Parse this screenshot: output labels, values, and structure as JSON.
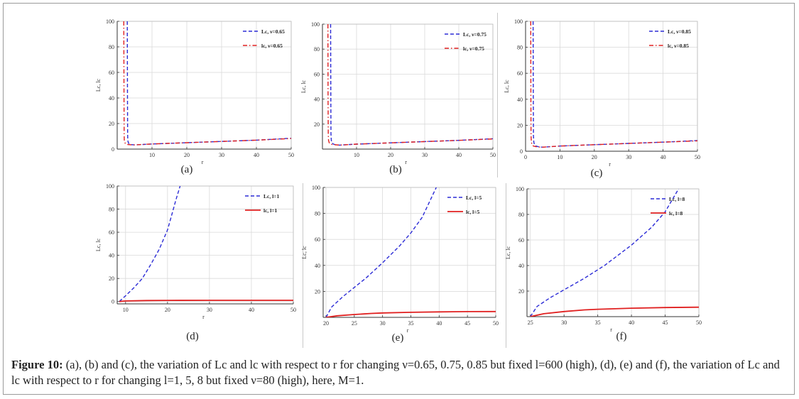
{
  "colors": {
    "blue": "#2b2bd6",
    "red": "#e02020",
    "grid": "#d9d9d9",
    "axis": "#333333"
  },
  "caption": {
    "label": "Figure 10:",
    "text": "(a), (b) and (c), the variation of Lc and lc with respect to r for changing ν=0.65, 0.75, 0.85 but fixed l=600 (high), (d), (e) and (f), the variation of Lc and lc with respect to r for changing l=1, 5, 8 but fixed ν=80 (high), here, M=1."
  },
  "chart_data": [
    {
      "id": "a",
      "panel_label": "(a)",
      "type": "line",
      "xlabel": "r",
      "ylabel": "Lc, lc",
      "xlim": [
        0,
        50
      ],
      "ylim": [
        0,
        100
      ],
      "xticks": [
        10,
        20,
        30,
        40,
        50
      ],
      "yticks": [
        0,
        20,
        40,
        60,
        80,
        100
      ],
      "legend": "top-right",
      "series": [
        {
          "name": "Lc, ν=0.65",
          "style": "dashed",
          "color": "blue",
          "x": [
            2.9,
            2.95,
            3.0,
            3.05,
            3.2,
            3.5,
            4,
            5,
            10,
            20,
            30,
            40,
            50
          ],
          "y": [
            100,
            40,
            12,
            7,
            5,
            4,
            3.5,
            3.3,
            4,
            5,
            6,
            7,
            8.5
          ]
        },
        {
          "name": "lc, ν=0.65",
          "style": "dashdot",
          "color": "red",
          "x": [
            1.9,
            1.95,
            2.0,
            2.05,
            2.2,
            2.5,
            3,
            4,
            5,
            10,
            20,
            30,
            40,
            50
          ],
          "y": [
            100,
            40,
            12,
            7,
            5,
            4,
            3.6,
            3.4,
            3.3,
            4,
            5,
            6,
            7,
            8.3
          ]
        }
      ]
    },
    {
      "id": "b",
      "panel_label": "(b)",
      "type": "line",
      "xlabel": "r",
      "ylabel": "Lc, lc",
      "xlim": [
        0,
        50
      ],
      "ylim": [
        0,
        100
      ],
      "xticks": [
        10,
        20,
        30,
        40,
        50
      ],
      "yticks": [
        20,
        40,
        60,
        80,
        100
      ],
      "legend": "top-right",
      "series": [
        {
          "name": "Lc, ν=0.75",
          "style": "dashed",
          "color": "blue",
          "x": [
            2.4,
            2.45,
            2.5,
            2.6,
            2.8,
            3.2,
            4,
            5,
            10,
            20,
            30,
            40,
            50
          ],
          "y": [
            100,
            40,
            12,
            7,
            5,
            4,
            3.4,
            3.2,
            4,
            5,
            6,
            7,
            8.3
          ]
        },
        {
          "name": "lc, ν=0.75",
          "style": "dashdot",
          "color": "red",
          "x": [
            1.6,
            1.65,
            1.7,
            1.8,
            2.0,
            2.4,
            3,
            4,
            5,
            10,
            20,
            30,
            40,
            50
          ],
          "y": [
            100,
            40,
            12,
            7,
            5,
            4,
            3.6,
            3.4,
            3.2,
            4,
            5,
            6,
            7,
            8.1
          ]
        }
      ]
    },
    {
      "id": "c",
      "panel_label": "(c)",
      "type": "line",
      "xlabel": "r",
      "ylabel": "Lc, lc",
      "xlim": [
        0,
        50
      ],
      "ylim": [
        0,
        100
      ],
      "xticks": [
        0,
        10,
        20,
        30,
        40,
        50
      ],
      "yticks": [
        0,
        20,
        40,
        60,
        80,
        100
      ],
      "legend": "top-right",
      "series": [
        {
          "name": "Lc, ν=0.85",
          "style": "dashed",
          "color": "blue",
          "x": [
            2.2,
            2.25,
            2.3,
            2.4,
            2.6,
            3.0,
            4,
            5,
            10,
            20,
            30,
            40,
            50
          ],
          "y": [
            100,
            40,
            12,
            7,
            5,
            4,
            3.3,
            3.1,
            4,
            5,
            6,
            7,
            8.2
          ]
        },
        {
          "name": "lc, ν=0.85",
          "style": "dashdot",
          "color": "red",
          "x": [
            1.5,
            1.55,
            1.6,
            1.7,
            1.9,
            2.3,
            3,
            4,
            5,
            10,
            20,
            30,
            40,
            50
          ],
          "y": [
            100,
            40,
            12,
            7,
            5,
            4,
            3.5,
            3.2,
            3.1,
            4,
            5,
            6,
            7,
            8.0
          ]
        }
      ]
    },
    {
      "id": "d",
      "panel_label": "(d)",
      "type": "line",
      "xlabel": "r",
      "ylabel": "Lc, lc",
      "xlim": [
        8,
        50
      ],
      "ylim": [
        -2,
        100
      ],
      "xticks": [
        10,
        20,
        30,
        40,
        50
      ],
      "yticks": [
        0,
        20,
        40,
        60,
        80,
        100
      ],
      "legend": "top-right",
      "series": [
        {
          "name": "Lc, l=1",
          "style": "dashed",
          "color": "blue",
          "x": [
            8.5,
            10,
            12,
            14,
            16,
            18,
            20,
            21,
            22,
            23
          ],
          "y": [
            0,
            5,
            12,
            20,
            32,
            45,
            62,
            75,
            88,
            100
          ]
        },
        {
          "name": "lc, l=1",
          "style": "solid",
          "color": "red",
          "x": [
            8.5,
            10,
            15,
            20,
            30,
            40,
            50
          ],
          "y": [
            0,
            0.5,
            0.9,
            1.0,
            1.05,
            1.08,
            1.1
          ]
        }
      ]
    },
    {
      "id": "e",
      "panel_label": "(e)",
      "type": "line",
      "xlabel": "r",
      "ylabel": "Lc, lc",
      "xlim": [
        19.5,
        50
      ],
      "ylim": [
        0,
        100
      ],
      "xticks": [
        20,
        25,
        30,
        35,
        40,
        45,
        50
      ],
      "yticks": [
        20,
        40,
        60,
        80,
        100
      ],
      "legend": "top-right",
      "series": [
        {
          "name": "Lc, l=5",
          "style": "dashed",
          "color": "blue",
          "x": [
            20,
            21,
            23,
            25,
            27,
            30,
            33,
            35,
            37,
            39.5
          ],
          "y": [
            0,
            8,
            16,
            23,
            30,
            42,
            55,
            65,
            77,
            100
          ]
        },
        {
          "name": "lc, l=5",
          "style": "solid",
          "color": "red",
          "x": [
            20,
            22,
            25,
            28,
            30,
            35,
            40,
            45,
            50
          ],
          "y": [
            0,
            1.2,
            2.2,
            3.0,
            3.4,
            3.9,
            4.2,
            4.4,
            4.5
          ]
        }
      ]
    },
    {
      "id": "f",
      "panel_label": "(f)",
      "type": "line",
      "xlabel": "r",
      "ylabel": "Lc, lc",
      "xlim": [
        24.5,
        50
      ],
      "ylim": [
        0,
        100
      ],
      "xticks": [
        25,
        30,
        35,
        40,
        45,
        50
      ],
      "yticks": [
        20,
        40,
        60,
        80,
        100
      ],
      "legend": "top-right",
      "series": [
        {
          "name": "Lc, l=8",
          "style": "dashed",
          "color": "blue",
          "x": [
            25,
            26,
            28,
            30,
            33,
            36,
            40,
            43,
            45,
            47
          ],
          "y": [
            0,
            8,
            15,
            21,
            30,
            40,
            56,
            70,
            82,
            100
          ]
        },
        {
          "name": "lc, l=8",
          "style": "solid",
          "color": "red",
          "x": [
            25,
            27,
            30,
            33,
            35,
            40,
            45,
            50
          ],
          "y": [
            0,
            2.3,
            4,
            5.3,
            5.8,
            6.6,
            7.1,
            7.4
          ]
        }
      ]
    }
  ]
}
